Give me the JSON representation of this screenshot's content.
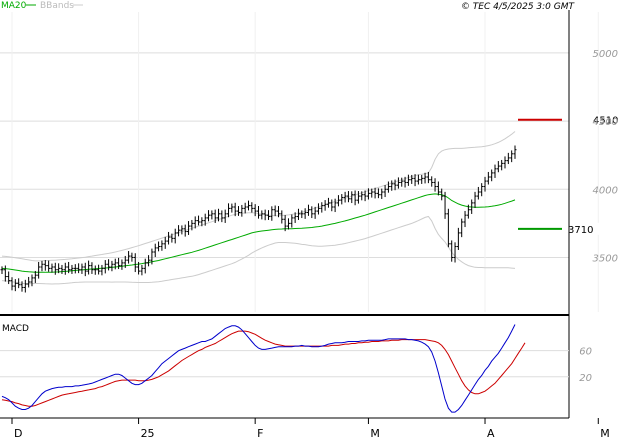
{
  "header": {
    "copyright": "© TEC 4/5/2025 3:0 GMT",
    "legend": [
      {
        "label": "MA20",
        "color": "#00aa00"
      },
      {
        "label": "BBands",
        "color": "#bbbbbb"
      }
    ]
  },
  "macd_label": "MACD",
  "colors": {
    "candle": "#000000",
    "ma20": "#00aa00",
    "bbands": "#cccccc",
    "resistance": "#cc0000",
    "support": "#009900",
    "macd": "#0000cc",
    "signal": "#cc0000",
    "grid": "#dddddd",
    "divider": "#000000"
  },
  "chart_data": [
    {
      "type": "line",
      "title": "",
      "series_types": [
        "ohlc",
        "ma",
        "bollinger"
      ],
      "y_ticks": [
        "5000",
        "4500",
        "4000",
        "3500"
      ],
      "y_tick_values": [
        5000,
        4500,
        4000,
        3500
      ],
      "ylim": [
        3100,
        5300
      ],
      "x_ticks": [
        "D",
        "25",
        "F",
        "M",
        "A",
        "M"
      ],
      "x_tick_index": [
        3,
        41,
        76,
        110,
        145,
        179
      ],
      "grid": true,
      "levels": [
        {
          "name": "resistance",
          "label": "4510",
          "value": 4510
        },
        {
          "name": "support",
          "label": "3710",
          "value": 3710
        }
      ],
      "close": [
        3410,
        3360,
        3330,
        3290,
        3310,
        3300,
        3280,
        3305,
        3320,
        3350,
        3370,
        3430,
        3450,
        3440,
        3420,
        3430,
        3410,
        3420,
        3410,
        3430,
        3410,
        3420,
        3420,
        3410,
        3430,
        3400,
        3440,
        3410,
        3410,
        3400,
        3420,
        3450,
        3430,
        3450,
        3460,
        3440,
        3460,
        3480,
        3510,
        3500,
        3430,
        3400,
        3420,
        3460,
        3480,
        3540,
        3570,
        3580,
        3600,
        3620,
        3650,
        3640,
        3680,
        3700,
        3710,
        3690,
        3730,
        3750,
        3770,
        3760,
        3770,
        3790,
        3810,
        3820,
        3790,
        3820,
        3790,
        3820,
        3860,
        3870,
        3840,
        3830,
        3860,
        3870,
        3880,
        3860,
        3840,
        3810,
        3820,
        3810,
        3800,
        3850,
        3840,
        3820,
        3780,
        3730,
        3750,
        3790,
        3800,
        3820,
        3820,
        3830,
        3850,
        3820,
        3840,
        3860,
        3880,
        3890,
        3900,
        3870,
        3900,
        3920,
        3940,
        3950,
        3930,
        3960,
        3920,
        3950,
        3960,
        3950,
        3970,
        3980,
        3970,
        3960,
        3980,
        4000,
        4020,
        4040,
        4030,
        4050,
        4060,
        4050,
        4070,
        4080,
        4060,
        4070,
        4080,
        4090,
        4070,
        4050,
        4020,
        3980,
        3950,
        3820,
        3600,
        3500,
        3580,
        3680,
        3760,
        3810,
        3850,
        3900,
        3950,
        3980,
        4020,
        4060,
        4090,
        4120,
        4150,
        4170,
        4190,
        4210,
        4230,
        4260,
        4290
      ],
      "ma20": [
        3420,
        3418,
        3415,
        3412,
        3408,
        3404,
        3400,
        3397,
        3395,
        3393,
        3392,
        3392,
        3392,
        3392,
        3392,
        3392,
        3393,
        3394,
        3396,
        3398,
        3400,
        3402,
        3405,
        3407,
        3409,
        3411,
        3413,
        3415,
        3417,
        3419,
        3421,
        3423,
        3425,
        3427,
        3430,
        3433,
        3436,
        3439,
        3442,
        3445,
        3448,
        3451,
        3455,
        3459,
        3463,
        3468,
        3473,
        3478,
        3484,
        3490,
        3496,
        3502,
        3508,
        3514,
        3520,
        3526,
        3532,
        3538,
        3545,
        3552,
        3560,
        3568,
        3576,
        3584,
        3592,
        3600,
        3608,
        3616,
        3624,
        3632,
        3640,
        3648,
        3656,
        3664,
        3672,
        3680,
        3686,
        3690,
        3694,
        3697,
        3700,
        3703,
        3706,
        3708,
        3709,
        3710,
        3710,
        3711,
        3712,
        3713,
        3714,
        3716,
        3718,
        3720,
        3723,
        3726,
        3730,
        3735,
        3740,
        3745,
        3750,
        3756,
        3762,
        3768,
        3775,
        3782,
        3789,
        3796,
        3803,
        3810,
        3818,
        3826,
        3834,
        3842,
        3850,
        3858,
        3866,
        3874,
        3882,
        3890,
        3898,
        3906,
        3914,
        3922,
        3930,
        3938,
        3946,
        3954,
        3960,
        3964,
        3966,
        3964,
        3960,
        3952,
        3936,
        3918,
        3905,
        3893,
        3884,
        3877,
        3872,
        3870,
        3868,
        3868,
        3869,
        3870,
        3872,
        3875,
        3879,
        3884,
        3890,
        3897,
        3905,
        3913,
        3922
      ],
      "bb_upper": [
        3510,
        3508,
        3505,
        3502,
        3498,
        3494,
        3490,
        3486,
        3482,
        3478,
        3475,
        3475,
        3476,
        3477,
        3478,
        3479,
        3480,
        3482,
        3484,
        3486,
        3488,
        3490,
        3493,
        3496,
        3499,
        3502,
        3506,
        3510,
        3514,
        3518,
        3522,
        3526,
        3530,
        3535,
        3540,
        3546,
        3552,
        3558,
        3565,
        3572,
        3579,
        3586,
        3594,
        3602,
        3610,
        3618,
        3626,
        3634,
        3642,
        3650,
        3658,
        3666,
        3674,
        3682,
        3690,
        3698,
        3706,
        3714,
        3722,
        3730,
        3738,
        3746,
        3754,
        3762,
        3770,
        3778,
        3786,
        3794,
        3802,
        3810,
        3816,
        3820,
        3824,
        3826,
        3828,
        3828,
        3826,
        3822,
        3818,
        3814,
        3810,
        3808,
        3806,
        3806,
        3808,
        3810,
        3812,
        3816,
        3820,
        3826,
        3832,
        3838,
        3846,
        3854,
        3862,
        3870,
        3878,
        3886,
        3894,
        3902,
        3910,
        3918,
        3926,
        3934,
        3942,
        3950,
        3958,
        3966,
        3974,
        3982,
        3990,
        3998,
        4006,
        4014,
        4022,
        4030,
        4038,
        4046,
        4054,
        4062,
        4070,
        4078,
        4086,
        4094,
        4100,
        4106,
        4110,
        4114,
        4120,
        4160,
        4220,
        4260,
        4280,
        4290,
        4295,
        4298,
        4300,
        4300,
        4300,
        4302,
        4304,
        4306,
        4308,
        4310,
        4312,
        4316,
        4320,
        4326,
        4334,
        4344,
        4356,
        4370,
        4386,
        4404,
        4424
      ],
      "bb_lower": [
        3330,
        3328,
        3325,
        3322,
        3318,
        3314,
        3310,
        3308,
        3308,
        3308,
        3309,
        3309,
        3308,
        3307,
        3306,
        3305,
        3306,
        3306,
        3308,
        3310,
        3312,
        3314,
        3317,
        3318,
        3319,
        3320,
        3320,
        3320,
        3320,
        3320,
        3320,
        3320,
        3320,
        3319,
        3320,
        3320,
        3320,
        3320,
        3319,
        3318,
        3317,
        3316,
        3316,
        3316,
        3316,
        3318,
        3320,
        3322,
        3326,
        3330,
        3334,
        3338,
        3342,
        3346,
        3350,
        3354,
        3358,
        3362,
        3368,
        3374,
        3382,
        3390,
        3398,
        3406,
        3414,
        3422,
        3430,
        3438,
        3446,
        3454,
        3464,
        3476,
        3488,
        3502,
        3516,
        3532,
        3546,
        3558,
        3570,
        3580,
        3590,
        3598,
        3606,
        3610,
        3610,
        3610,
        3608,
        3606,
        3604,
        3600,
        3596,
        3594,
        3590,
        3586,
        3584,
        3582,
        3582,
        3584,
        3586,
        3588,
        3590,
        3594,
        3598,
        3602,
        3608,
        3614,
        3620,
        3626,
        3632,
        3638,
        3646,
        3654,
        3662,
        3670,
        3678,
        3686,
        3694,
        3702,
        3710,
        3718,
        3726,
        3734,
        3742,
        3750,
        3760,
        3770,
        3782,
        3794,
        3800,
        3768,
        3712,
        3668,
        3640,
        3614,
        3577,
        3538,
        3510,
        3486,
        3468,
        3452,
        3440,
        3434,
        3428,
        3426,
        3426,
        3424,
        3424,
        3424,
        3424,
        3424,
        3424,
        3424,
        3424,
        3422,
        3420
      ]
    },
    {
      "type": "line",
      "title": "MACD",
      "y_ticks": [
        "60",
        "20"
      ],
      "y_tick_values": [
        60,
        20
      ],
      "ylim": [
        -40,
        110
      ],
      "x_ticks": [
        "D",
        "25",
        "F",
        "M",
        "A",
        "M"
      ],
      "series": [
        {
          "name": "MACD",
          "values": [
            -10,
            -12,
            -15,
            -20,
            -25,
            -28,
            -30,
            -30,
            -28,
            -24,
            -18,
            -12,
            -6,
            -2,
            0,
            2,
            3,
            4,
            4,
            5,
            5,
            5,
            6,
            6,
            7,
            8,
            9,
            10,
            12,
            14,
            16,
            18,
            20,
            22,
            24,
            24,
            22,
            18,
            14,
            10,
            8,
            8,
            10,
            14,
            18,
            22,
            28,
            34,
            40,
            44,
            48,
            52,
            56,
            60,
            62,
            64,
            66,
            68,
            70,
            72,
            74,
            74,
            76,
            78,
            82,
            86,
            90,
            94,
            96,
            98,
            98,
            96,
            92,
            86,
            80,
            74,
            68,
            64,
            62,
            62,
            63,
            64,
            65,
            66,
            66,
            66,
            66,
            66,
            67,
            67,
            68,
            67,
            67,
            66,
            66,
            66,
            67,
            68,
            70,
            71,
            72,
            72,
            72,
            73,
            74,
            74,
            74,
            74,
            75,
            75,
            76,
            76,
            76,
            76,
            76,
            77,
            78,
            78,
            78,
            78,
            78,
            78,
            77,
            77,
            76,
            75,
            73,
            70,
            66,
            58,
            44,
            26,
            6,
            -14,
            -28,
            -34,
            -34,
            -30,
            -24,
            -16,
            -8,
            0,
            8,
            16,
            22,
            30,
            36,
            44,
            50,
            56,
            64,
            72,
            80,
            90,
            100
          ]
        },
        {
          "name": "Signal",
          "values": [
            -15,
            -16,
            -17,
            -18,
            -20,
            -21,
            -23,
            -24,
            -25,
            -25,
            -24,
            -22,
            -20,
            -18,
            -16,
            -14,
            -12,
            -10,
            -8,
            -7,
            -6,
            -5,
            -4,
            -3,
            -2,
            -1,
            0,
            1,
            2,
            4,
            5,
            7,
            9,
            11,
            13,
            14,
            15,
            15,
            15,
            15,
            15,
            14,
            14,
            14,
            15,
            16,
            18,
            20,
            23,
            26,
            29,
            33,
            37,
            41,
            45,
            48,
            51,
            54,
            57,
            60,
            62,
            65,
            67,
            69,
            71,
            74,
            77,
            80,
            83,
            86,
            88,
            90,
            90,
            90,
            89,
            87,
            85,
            82,
            79,
            76,
            74,
            72,
            70,
            69,
            68,
            67,
            67,
            67,
            67,
            67,
            67,
            67,
            67,
            67,
            67,
            67,
            67,
            67,
            67,
            68,
            68,
            68,
            69,
            70,
            70,
            71,
            71,
            72,
            72,
            73,
            73,
            74,
            74,
            74,
            75,
            75,
            75,
            76,
            76,
            76,
            77,
            77,
            77,
            77,
            77,
            77,
            77,
            77,
            76,
            75,
            74,
            72,
            68,
            62,
            54,
            44,
            34,
            24,
            14,
            6,
            0,
            -4,
            -6,
            -6,
            -4,
            -2,
            2,
            6,
            10,
            16,
            22,
            28,
            34,
            40,
            48,
            56,
            64,
            72
          ]
        }
      ]
    }
  ]
}
